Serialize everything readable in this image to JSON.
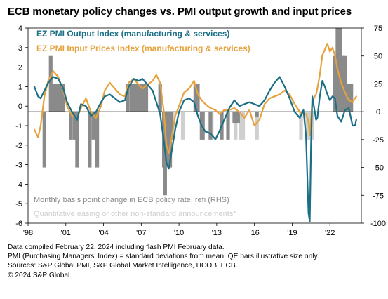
{
  "title": "ECB monetary policy changes vs. PMI output growth and input prices",
  "notes": [
    "Data compiled February 22, 2024 including flash PMI February data.",
    "PMI (Purchasing Managers' Index) = standard deviations from mean. QE bars illustrative size only.",
    "Sources: S&P Global PMI, S&P Global Market Intelligence, HCOB, ECB.",
    "© 2024 S&P Global."
  ],
  "chart_data": {
    "type": "line",
    "x_ticks": [
      "'98",
      "'01",
      "'04",
      "'07",
      "'10",
      "'13",
      "'16",
      "'19",
      "'22"
    ],
    "x_range": [
      1998.0,
      2024.5
    ],
    "y_left": {
      "range": [
        -6,
        4
      ],
      "ticks": [
        4,
        3,
        2,
        1,
        0,
        -1,
        -2,
        -3,
        -4,
        -5,
        -6
      ]
    },
    "y_right": {
      "range": [
        -100,
        75
      ],
      "ticks": [
        75,
        50,
        25,
        0,
        -25,
        -50,
        -75,
        -100
      ]
    },
    "legend": [
      {
        "label": "EZ PMI Output Index (manufacturing & services)",
        "color": "#1a6f86",
        "position": "top-left"
      },
      {
        "label": "EZ PMI Input Prices Index (manufacturing & services)",
        "color": "#e6a23c",
        "position": "top-left"
      },
      {
        "label": "Monthly basis point change in ECB policy rate, refi (RHS)",
        "color": "#8a8a8a",
        "position": "bottom-left"
      },
      {
        "label": "Quantitative easing or other non-standard announcements*",
        "color": "#cfcfcf",
        "position": "bottom-left"
      }
    ],
    "series": [
      {
        "name": "EZ PMI Output Index (manufacturing & services)",
        "axis": "left",
        "color": "#1a6f86",
        "x": [
          1998.5,
          1998.8,
          1999.0,
          1999.3,
          1999.6,
          2000.0,
          2000.4,
          2000.8,
          2001.1,
          2001.5,
          2001.9,
          2002.2,
          2002.6,
          2003.0,
          2003.4,
          2003.8,
          2004.1,
          2004.5,
          2004.9,
          2005.3,
          2005.7,
          2006.0,
          2006.4,
          2006.8,
          2007.1,
          2007.5,
          2007.9,
          2008.2,
          2008.5,
          2008.8,
          2009.0,
          2009.2,
          2009.4,
          2009.7,
          2010.0,
          2010.4,
          2010.8,
          2011.2,
          2011.5,
          2011.8,
          2012.1,
          2012.5,
          2012.9,
          2013.2,
          2013.6,
          2014.0,
          2014.4,
          2014.8,
          2015.2,
          2015.6,
          2016.0,
          2016.4,
          2016.8,
          2017.2,
          2017.6,
          2018.0,
          2018.4,
          2018.8,
          2019.2,
          2019.6,
          2019.9,
          2020.1,
          2020.3,
          2020.4,
          2020.5,
          2020.6,
          2020.8,
          2020.9,
          2021.0,
          2021.2,
          2021.4,
          2021.6,
          2021.8,
          2022.0,
          2022.2,
          2022.4,
          2022.6,
          2022.9,
          2023.2,
          2023.5,
          2023.8,
          2024.0,
          2024.1
        ],
        "y": [
          1.0,
          0.5,
          0.4,
          0.8,
          1.2,
          1.5,
          1.4,
          0.9,
          0.2,
          -0.3,
          -0.7,
          0.1,
          0.0,
          -0.5,
          -0.3,
          0.2,
          0.5,
          0.6,
          0.4,
          0.2,
          0.3,
          1.0,
          1.4,
          1.3,
          1.4,
          1.1,
          0.8,
          0.2,
          -0.4,
          -1.8,
          -2.9,
          -3.2,
          -2.4,
          -1.2,
          -0.3,
          0.3,
          0.4,
          0.2,
          -0.5,
          -1.0,
          -1.3,
          -1.4,
          -1.7,
          -1.3,
          -0.7,
          -0.1,
          0.3,
          0.0,
          0.1,
          0.2,
          0.1,
          0.0,
          0.3,
          0.8,
          1.2,
          1.5,
          1.0,
          0.4,
          -0.3,
          -0.6,
          -0.2,
          -1.5,
          -5.5,
          -5.9,
          -2.0,
          0.5,
          -0.3,
          -0.7,
          -0.6,
          0.5,
          1.3,
          1.0,
          0.6,
          0.3,
          0.5,
          0.4,
          -0.5,
          -0.8,
          -0.2,
          -0.1,
          -1.0,
          -1.0,
          -0.7
        ]
      },
      {
        "name": "EZ PMI Input Prices Index (manufacturing & services)",
        "axis": "left",
        "color": "#e6a23c",
        "x": [
          1998.5,
          1998.8,
          1999.0,
          1999.3,
          1999.6,
          2000.0,
          2000.4,
          2000.8,
          2001.1,
          2001.5,
          2001.9,
          2002.2,
          2002.6,
          2003.0,
          2003.4,
          2003.8,
          2004.1,
          2004.5,
          2004.9,
          2005.3,
          2005.7,
          2006.0,
          2006.4,
          2006.8,
          2007.1,
          2007.5,
          2007.9,
          2008.2,
          2008.5,
          2008.8,
          2009.0,
          2009.2,
          2009.4,
          2009.7,
          2010.0,
          2010.4,
          2010.8,
          2011.2,
          2011.5,
          2011.8,
          2012.1,
          2012.5,
          2012.9,
          2013.2,
          2013.6,
          2014.0,
          2014.4,
          2014.8,
          2015.2,
          2015.6,
          2016.0,
          2016.4,
          2016.8,
          2017.2,
          2017.6,
          2018.0,
          2018.4,
          2018.8,
          2019.2,
          2019.6,
          2019.9,
          2020.1,
          2020.3,
          2020.4,
          2020.5,
          2020.6,
          2020.8,
          2020.9,
          2021.0,
          2021.2,
          2021.4,
          2021.6,
          2021.8,
          2022.0,
          2022.2,
          2022.4,
          2022.6,
          2022.9,
          2023.2,
          2023.5,
          2023.8,
          2024.0,
          2024.1
        ],
        "y": [
          -1.2,
          -1.6,
          -1.0,
          0.5,
          1.3,
          1.8,
          1.5,
          0.8,
          0.0,
          -0.5,
          -0.6,
          -0.1,
          0.4,
          -0.3,
          -0.6,
          0.0,
          0.8,
          1.2,
          0.9,
          0.6,
          0.5,
          1.2,
          1.4,
          1.1,
          0.9,
          1.1,
          1.3,
          1.6,
          1.2,
          -0.3,
          -2.0,
          -2.4,
          -1.7,
          -0.5,
          0.0,
          0.7,
          0.9,
          1.3,
          0.6,
          0.3,
          0.1,
          -0.1,
          -0.2,
          -0.4,
          -0.2,
          -0.2,
          -0.1,
          -0.3,
          -0.6,
          -0.2,
          -1.0,
          -0.7,
          0.1,
          0.4,
          0.5,
          0.6,
          0.8,
          0.6,
          0.1,
          -0.3,
          -0.4,
          -0.4,
          -0.8,
          -1.5,
          -0.6,
          0.2,
          0.5,
          0.6,
          0.9,
          1.6,
          2.6,
          2.9,
          3.2,
          2.8,
          3.0,
          2.6,
          1.9,
          1.2,
          0.7,
          0.3,
          0.2,
          0.4,
          0.5
        ]
      },
      {
        "name": "Monthly basis point change in ECB policy rate, refi (RHS)",
        "axis": "right",
        "type": "bar",
        "color": "#8a8a8a",
        "x": [
          1999.3,
          1999.8,
          2000.0,
          2000.2,
          2000.4,
          2000.6,
          2000.8,
          2001.4,
          2001.7,
          2001.9,
          2002.9,
          2003.2,
          2003.5,
          2005.9,
          2006.2,
          2006.4,
          2006.6,
          2006.8,
          2007.0,
          2007.2,
          2007.4,
          2008.5,
          2008.8,
          2008.9,
          2009.0,
          2009.2,
          2009.3,
          2009.4,
          2011.3,
          2011.5,
          2011.8,
          2011.9,
          2012.5,
          2013.4,
          2013.9,
          2014.4,
          2014.7,
          2016.2,
          2022.4,
          2022.6,
          2022.8,
          2022.9,
          2023.0,
          2023.2,
          2023.4,
          2023.6,
          2023.7
        ],
        "y": [
          -50,
          50,
          25,
          25,
          25,
          25,
          25,
          -25,
          -25,
          -50,
          -50,
          -25,
          -50,
          25,
          25,
          25,
          25,
          25,
          25,
          25,
          25,
          25,
          -50,
          -75,
          -50,
          -25,
          -50,
          -25,
          25,
          25,
          -25,
          -25,
          -25,
          -25,
          -25,
          -10,
          -10,
          -5,
          50,
          75,
          75,
          50,
          50,
          50,
          25,
          25,
          25
        ]
      },
      {
        "name": "Quantitative easing or other non-standard announcements*",
        "axis": "right",
        "type": "bar",
        "color": "#cfcfcf",
        "x": [
          2008.9,
          2009.5,
          2010.3,
          2011.9,
          2012.6,
          2014.5,
          2014.9,
          2015.1,
          2016.2,
          2019.7,
          2020.2,
          2020.3,
          2020.6
        ],
        "y": [
          -25,
          -25,
          -25,
          -25,
          -25,
          -25,
          -25,
          -25,
          -25,
          -25,
          -25,
          -25,
          -25
        ]
      }
    ]
  }
}
